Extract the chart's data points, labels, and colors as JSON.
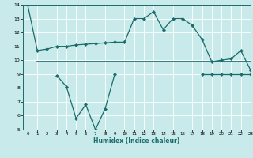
{
  "xlabel": "Humidex (Indice chaleur)",
  "x": [
    0,
    1,
    2,
    3,
    4,
    5,
    6,
    7,
    8,
    9,
    10,
    11,
    12,
    13,
    14,
    15,
    16,
    17,
    18,
    19,
    20,
    21,
    22,
    23
  ],
  "line1": [
    14.0,
    10.7,
    10.8,
    11.0,
    11.0,
    11.1,
    11.15,
    11.2,
    11.25,
    11.3,
    11.3,
    13.0,
    13.0,
    13.5,
    12.2,
    13.0,
    13.0,
    12.5,
    11.5,
    9.9,
    10.0,
    10.1,
    10.7,
    9.3
  ],
  "line2": [
    null,
    9.9,
    9.9,
    9.9,
    9.9,
    9.9,
    9.9,
    9.9,
    9.9,
    9.9,
    9.9,
    9.9,
    9.9,
    9.9,
    9.9,
    9.9,
    9.9,
    9.9,
    9.9,
    9.9,
    9.9,
    9.9,
    9.9,
    9.9
  ],
  "line3": [
    null,
    null,
    null,
    8.9,
    8.1,
    5.8,
    6.8,
    5.0,
    6.5,
    9.0,
    null,
    null,
    null,
    null,
    null,
    null,
    null,
    null,
    9.0,
    9.0,
    9.0,
    9.0,
    9.0,
    9.0
  ],
  "line_color": "#1a6b6b",
  "bg_color": "#c8eaea",
  "grid_color": "#ffffff",
  "ylim": [
    5,
    14
  ],
  "xlim": [
    -0.5,
    23
  ]
}
